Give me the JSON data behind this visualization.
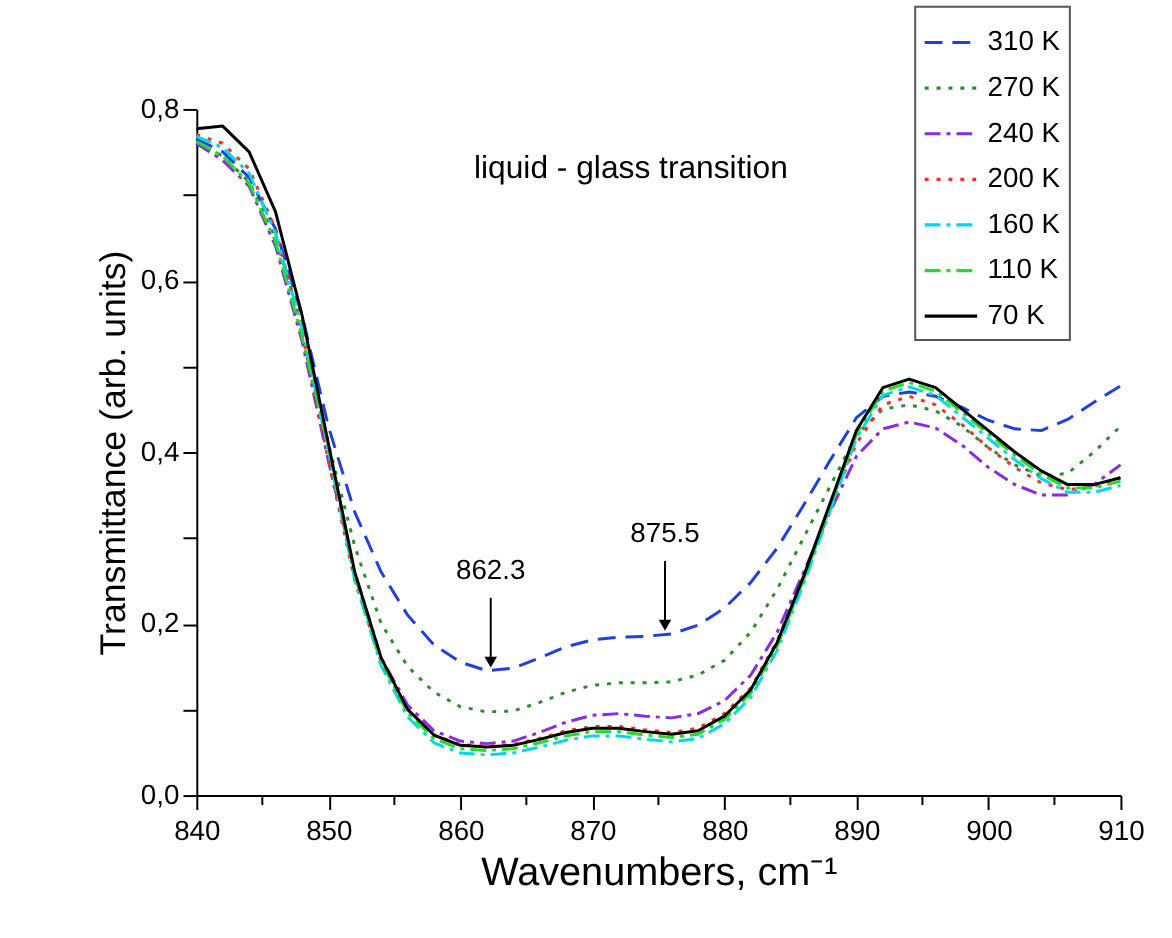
{
  "chart_data": {
    "type": "line",
    "xlabel": "Wavenumbers, cm⁻¹",
    "ylabel": "Transmittance (arb. units)",
    "annotations": [
      "liquid - glass transition",
      {
        "text": "862.3",
        "x": 862.3,
        "y": 0.145
      },
      {
        "text": "875.5",
        "x": 875.5,
        "y": 0.188
      }
    ],
    "x": [
      840,
      842,
      844,
      846,
      848,
      850,
      852,
      854,
      856,
      858,
      860,
      862,
      864,
      866,
      868,
      870,
      872,
      874,
      876,
      878,
      880,
      882,
      884,
      886,
      888,
      890,
      892,
      894,
      896,
      898,
      900,
      902,
      904,
      906,
      908,
      910
    ],
    "series": [
      {
        "name": "310 K",
        "color": "#1f3fe0",
        "line_style": "dashed",
        "values": [
          0.765,
          0.75,
          0.72,
          0.66,
          0.56,
          0.43,
          0.33,
          0.26,
          0.21,
          0.175,
          0.155,
          0.145,
          0.148,
          0.16,
          0.173,
          0.181,
          0.184,
          0.185,
          0.188,
          0.198,
          0.218,
          0.248,
          0.288,
          0.338,
          0.39,
          0.44,
          0.465,
          0.47,
          0.465,
          0.452,
          0.437,
          0.427,
          0.425,
          0.438,
          0.458,
          0.477
        ]
      },
      {
        "name": "270 K",
        "color": "#2e8b2e",
        "line_style": "dotted",
        "values": [
          0.76,
          0.745,
          0.715,
          0.65,
          0.55,
          0.41,
          0.29,
          0.2,
          0.15,
          0.12,
          0.103,
          0.097,
          0.098,
          0.108,
          0.12,
          0.128,
          0.131,
          0.131,
          0.132,
          0.14,
          0.157,
          0.19,
          0.24,
          0.3,
          0.36,
          0.42,
          0.45,
          0.455,
          0.448,
          0.43,
          0.405,
          0.385,
          0.372,
          0.375,
          0.4,
          0.43
        ]
      },
      {
        "name": "240 K",
        "color": "#8a2be2",
        "line_style": "dashdot",
        "values": [
          0.76,
          0.74,
          0.71,
          0.64,
          0.53,
          0.39,
          0.26,
          0.16,
          0.105,
          0.075,
          0.063,
          0.06,
          0.063,
          0.073,
          0.085,
          0.093,
          0.095,
          0.092,
          0.09,
          0.095,
          0.11,
          0.14,
          0.19,
          0.26,
          0.33,
          0.395,
          0.427,
          0.435,
          0.428,
          0.408,
          0.382,
          0.362,
          0.35,
          0.35,
          0.362,
          0.385
        ]
      },
      {
        "name": "200 K",
        "color": "#ff2a2a",
        "line_style": "dotted",
        "values": [
          0.77,
          0.76,
          0.73,
          0.66,
          0.54,
          0.39,
          0.25,
          0.155,
          0.1,
          0.07,
          0.059,
          0.057,
          0.059,
          0.066,
          0.075,
          0.08,
          0.08,
          0.076,
          0.073,
          0.078,
          0.095,
          0.125,
          0.18,
          0.255,
          0.335,
          0.41,
          0.455,
          0.465,
          0.455,
          0.432,
          0.405,
          0.382,
          0.364,
          0.356,
          0.36,
          0.37
        ]
      },
      {
        "name": "160 K",
        "color": "#00d8e8",
        "line_style": "dashdot",
        "values": [
          0.768,
          0.755,
          0.725,
          0.655,
          0.545,
          0.401,
          0.251,
          0.151,
          0.091,
          0.061,
          0.049,
          0.047,
          0.049,
          0.056,
          0.064,
          0.069,
          0.069,
          0.065,
          0.062,
          0.066,
          0.083,
          0.114,
          0.169,
          0.246,
          0.331,
          0.416,
          0.466,
          0.476,
          0.466,
          0.441,
          0.416,
          0.391,
          0.369,
          0.353,
          0.353,
          0.361
        ]
      },
      {
        "name": "110 K",
        "color": "#22dd22",
        "line_style": "dashdot",
        "values": [
          0.762,
          0.745,
          0.713,
          0.645,
          0.535,
          0.406,
          0.256,
          0.156,
          0.096,
          0.066,
          0.054,
          0.052,
          0.054,
          0.061,
          0.069,
          0.074,
          0.074,
          0.07,
          0.067,
          0.071,
          0.088,
          0.119,
          0.174,
          0.251,
          0.336,
          0.421,
          0.471,
          0.481,
          0.471,
          0.446,
          0.421,
          0.396,
          0.374,
          0.358,
          0.358,
          0.366
        ]
      },
      {
        "name": "70 K",
        "color": "#000000",
        "line_style": "solid",
        "values": [
          0.777,
          0.78,
          0.75,
          0.68,
          0.56,
          0.41,
          0.26,
          0.16,
          0.1,
          0.07,
          0.058,
          0.056,
          0.058,
          0.065,
          0.073,
          0.078,
          0.078,
          0.074,
          0.071,
          0.075,
          0.092,
          0.123,
          0.178,
          0.255,
          0.34,
          0.425,
          0.475,
          0.485,
          0.475,
          0.45,
          0.425,
          0.4,
          0.378,
          0.362,
          0.362,
          0.37
        ]
      }
    ],
    "xlim": [
      840,
      910
    ],
    "xticks": [
      840,
      {
        "value": 845,
        "label": null
      },
      850,
      {
        "value": 855,
        "label": null
      },
      860,
      {
        "value": 865,
        "label": null
      },
      870,
      {
        "value": 875,
        "label": null
      },
      880,
      {
        "value": 885,
        "label": null
      },
      890,
      {
        "value": 895,
        "label": null
      },
      900,
      {
        "value": 905,
        "label": null
      },
      910
    ],
    "ylim": [
      0,
      0.8
    ],
    "yticks": [
      {
        "value": 0,
        "label": "0,0"
      },
      {
        "value": 0.1,
        "label": null
      },
      {
        "value": 0.2,
        "label": "0,2"
      },
      {
        "value": 0.3,
        "label": null
      },
      {
        "value": 0.4,
        "label": "0,4"
      },
      {
        "value": 0.5,
        "label": null
      },
      {
        "value": 0.6,
        "label": "0,6"
      },
      {
        "value": 0.7,
        "label": null
      },
      {
        "value": 0.8,
        "label": "0,8"
      }
    ],
    "grid": false,
    "legend": "top right",
    "marker": "none"
  }
}
